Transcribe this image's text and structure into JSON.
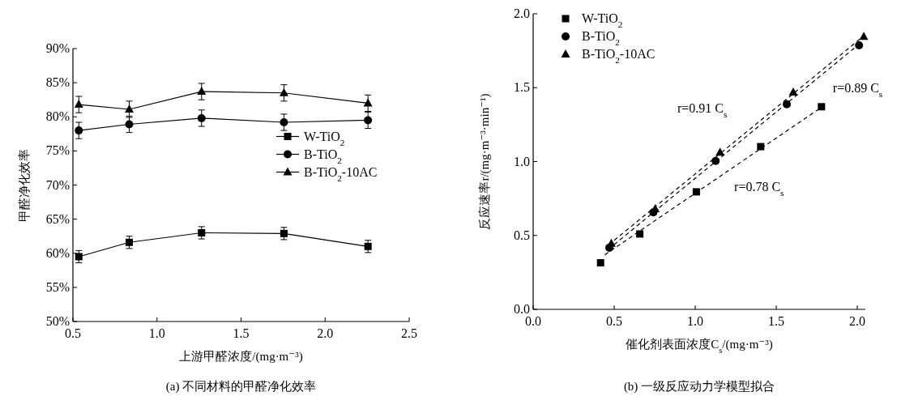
{
  "chart_data": [
    {
      "type": "line",
      "title": "(a) 不同材料的甲醛净化效率",
      "xlabel": "上游甲醛浓度/(mg·m⁻³)",
      "ylabel": "甲醛净化效率",
      "x": [
        0.535,
        0.835,
        1.265,
        1.755,
        2.255
      ],
      "xlim": [
        0.5,
        2.5
      ],
      "xticks": [
        {
          "value": 0.5,
          "label": "0.5"
        },
        {
          "value": 1,
          "label": "1.0"
        },
        {
          "value": 1.5,
          "label": "1.5"
        },
        {
          "value": 2,
          "label": "2.0"
        },
        {
          "value": 2.5,
          "label": "2.5"
        }
      ],
      "ylim": [
        50,
        90
      ],
      "yticks": [
        {
          "value": 50,
          "label": "50%"
        },
        {
          "value": 55,
          "label": "55%"
        },
        {
          "value": 60,
          "label": "60%"
        },
        {
          "value": 65,
          "label": "65%"
        },
        {
          "value": 70,
          "label": "70%"
        },
        {
          "value": 75,
          "label": "75%"
        },
        {
          "value": 80,
          "label": "80%"
        },
        {
          "value": 85,
          "label": "85%"
        },
        {
          "value": 90,
          "label": "90%"
        }
      ],
      "legend": "right",
      "line_style": "solid",
      "series": [
        {
          "name": "W-TiO$_{2}$",
          "color": "#000000",
          "marker": "square",
          "values": [
            59.5,
            61.6,
            63.0,
            62.9,
            61.0
          ],
          "errors": [
            0.9,
            0.9,
            0.9,
            0.9,
            0.9
          ]
        },
        {
          "name": "B-TiO$_{2}$",
          "color": "#000000",
          "marker": "circle",
          "values": [
            78.0,
            78.9,
            79.8,
            79.2,
            79.5
          ],
          "errors": [
            1.2,
            1.2,
            1.2,
            1.2,
            1.2
          ]
        },
        {
          "name": "B-TiO$_{2}$-10AC",
          "color": "#000000",
          "marker": "triangle",
          "values": [
            81.8,
            81.1,
            83.7,
            83.5,
            82.0
          ],
          "errors": [
            1.2,
            1.2,
            1.2,
            1.2,
            1.2
          ]
        }
      ]
    },
    {
      "type": "scatter",
      "title": "(b) 一级反应动力学模型拟合",
      "xlabel": "催化剂表面浓度C$_{s}$/(mg·m⁻³)",
      "ylabel": "反应速率r/(mg·m⁻³·min⁻¹)",
      "xlim": [
        0,
        2.05
      ],
      "xticks": [
        {
          "value": 0,
          "label": "0.0"
        },
        {
          "value": 0.5,
          "label": "0.5"
        },
        {
          "value": 1,
          "label": "1.0"
        },
        {
          "value": 1.5,
          "label": "1.5"
        },
        {
          "value": 2,
          "label": "2.0"
        }
      ],
      "ylim": [
        0,
        2
      ],
      "yticks": [
        {
          "value": 0,
          "label": "0.0"
        },
        {
          "value": 0.5,
          "label": "0.5"
        },
        {
          "value": 1,
          "label": "1.0"
        },
        {
          "value": 1.5,
          "label": "1.5"
        },
        {
          "value": 2,
          "label": "2.0"
        }
      ],
      "legend": "top left",
      "annotations": [
        "r=0.91 C$_{s}$",
        "r=0.89 C$_{s}$",
        "r=0.78 C$_{s}$"
      ],
      "series": [
        {
          "name": "W-TiO$_{2}$",
          "color": "#000000",
          "marker": "square",
          "x": [
            0.416,
            0.658,
            1.007,
            1.404,
            1.779
          ],
          "values": [
            0.315,
            0.51,
            0.795,
            1.101,
            1.371
          ]
        },
        {
          "name": "B-TiO$_{2}$",
          "color": "#000000",
          "marker": "circle",
          "x": [
            0.47,
            0.742,
            1.126,
            1.565,
            2.011
          ],
          "values": [
            0.417,
            0.656,
            1.004,
            1.388,
            1.786
          ]
        },
        {
          "name": "B-TiO$_{2}$-10AC",
          "color": "#000000",
          "marker": "triangle",
          "x": [
            0.482,
            0.753,
            1.153,
            1.605,
            2.04
          ],
          "values": [
            0.445,
            0.679,
            1.061,
            1.468,
            1.845
          ]
        },
        {
          "type": "line",
          "color": "#000000",
          "line_style": "dashed",
          "marker": "none",
          "x": [
            0.442,
            1.779
          ],
          "values": [
            0.369,
            1.367
          ]
        },
        {
          "type": "line",
          "color": "#000000",
          "line_style": "dashed",
          "marker": "none",
          "x": [
            0.465,
            2.0
          ],
          "values": [
            0.407,
            1.784
          ]
        },
        {
          "type": "line",
          "color": "#000000",
          "line_style": "dashed",
          "marker": "none",
          "x": [
            0.465,
            2.03
          ],
          "values": [
            0.436,
            1.841
          ]
        }
      ]
    }
  ]
}
